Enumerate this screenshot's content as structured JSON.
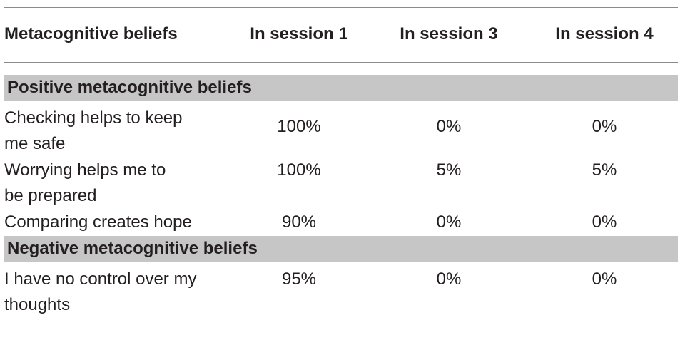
{
  "header": {
    "col0": "Metacognitive beliefs",
    "col1": "In session 1",
    "col2": "In session 3",
    "col3": "In session 4"
  },
  "sections": [
    {
      "title": "Positive metacognitive beliefs",
      "rows": [
        {
          "belief_line1": "Checking helps to keep",
          "belief_line2": "me safe",
          "s1": "100%",
          "s3": "0%",
          "s4": "0%"
        },
        {
          "belief_line1": "Worrying helps me to",
          "belief_line2": "be prepared",
          "s1": "100%",
          "s3": "5%",
          "s4": "5%"
        },
        {
          "belief_line1": "Comparing creates hope",
          "belief_line2": "",
          "s1": "90%",
          "s3": "0%",
          "s4": "0%"
        }
      ]
    },
    {
      "title": "Negative metacognitive beliefs",
      "rows": [
        {
          "belief_line1": "I have no control over my",
          "belief_line2": "thoughts",
          "s1": "95%",
          "s3": "0%",
          "s4": "0%"
        }
      ]
    }
  ],
  "colors": {
    "section_band": "#c6c6c6",
    "rule": "#8a8a8a",
    "text": "#231f20"
  }
}
